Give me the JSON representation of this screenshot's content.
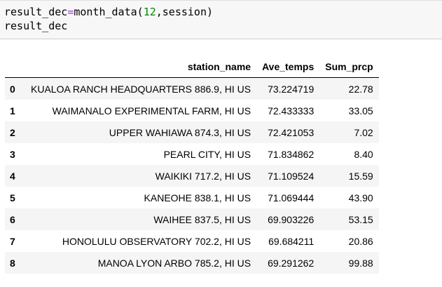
{
  "input_cell": {
    "line1": {
      "var": "result_dec",
      "op": "=",
      "func": "month_data(",
      "arg_num": "12",
      "rest": ",session)"
    },
    "line2": "result_dec"
  },
  "table": {
    "columns": [
      "",
      "station_name",
      "Ave_temps",
      "Sum_prcp"
    ],
    "rows": [
      {
        "idx": "0",
        "station_name": "KUALOA RANCH HEADQUARTERS 886.9, HI US",
        "ave_temps": "73.224719",
        "sum_prcp": "22.78"
      },
      {
        "idx": "1",
        "station_name": "WAIMANALO EXPERIMENTAL FARM, HI US",
        "ave_temps": "72.433333",
        "sum_prcp": "33.05"
      },
      {
        "idx": "2",
        "station_name": "UPPER WAHIAWA 874.3, HI US",
        "ave_temps": "72.421053",
        "sum_prcp": "7.02"
      },
      {
        "idx": "3",
        "station_name": "PEARL CITY, HI US",
        "ave_temps": "71.834862",
        "sum_prcp": "8.40"
      },
      {
        "idx": "4",
        "station_name": "WAIKIKI 717.2, HI US",
        "ave_temps": "71.109524",
        "sum_prcp": "15.59"
      },
      {
        "idx": "5",
        "station_name": "KANEOHE 838.1, HI US",
        "ave_temps": "71.069444",
        "sum_prcp": "43.90"
      },
      {
        "idx": "6",
        "station_name": "WAIHEE 837.5, HI US",
        "ave_temps": "69.903226",
        "sum_prcp": "53.15"
      },
      {
        "idx": "7",
        "station_name": "HONOLULU OBSERVATORY 702.2, HI US",
        "ave_temps": "69.684211",
        "sum_prcp": "20.86"
      },
      {
        "idx": "8",
        "station_name": "MANOA LYON ARBO 785.2, HI US",
        "ave_temps": "69.291262",
        "sum_prcp": "99.88"
      }
    ]
  },
  "colors": {
    "operator": "#aa22ff",
    "number": "#008800",
    "cell_background": "#f7f7f7",
    "row_stripe": "#f5f5f5"
  }
}
